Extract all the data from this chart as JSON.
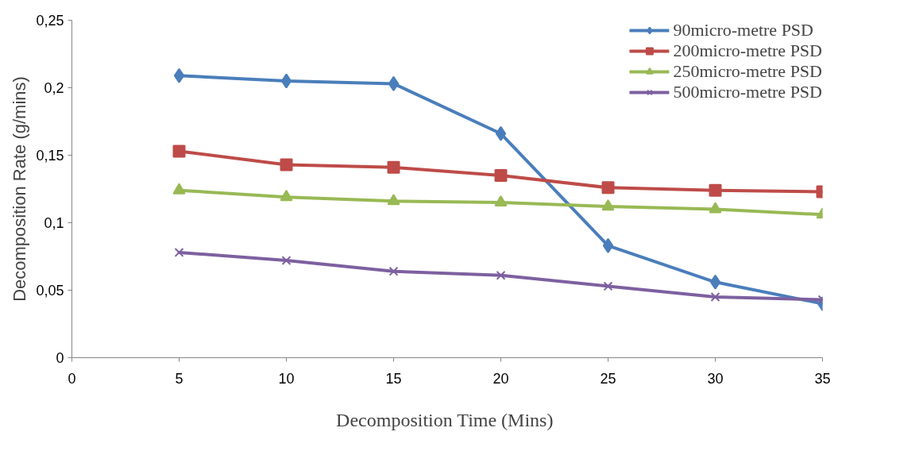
{
  "chart_data": {
    "type": "line",
    "xlabel": "Decomposition Time  (Mins)",
    "ylabel": "Decomposition Rate (g/mins)",
    "x": [
      5,
      10,
      15,
      20,
      25,
      30,
      35
    ],
    "series": [
      {
        "name": "90micro-metre PSD",
        "color": "#4a7ebb",
        "marker": "diamond",
        "values": [
          0.209,
          0.205,
          0.203,
          0.166,
          0.083,
          0.056,
          0.04
        ]
      },
      {
        "name": "200micro-metre PSD",
        "color": "#be4b48",
        "marker": "square",
        "values": [
          0.153,
          0.143,
          0.141,
          0.135,
          0.126,
          0.124,
          0.123
        ]
      },
      {
        "name": "250micro-metre PSD",
        "color": "#98b954",
        "marker": "triangle",
        "values": [
          0.124,
          0.119,
          0.116,
          0.115,
          0.112,
          0.11,
          0.106
        ]
      },
      {
        "name": "500micro-metre PSD",
        "color": "#7d60a0",
        "marker": "cross",
        "values": [
          0.078,
          0.072,
          0.064,
          0.061,
          0.053,
          0.045,
          0.043
        ]
      }
    ],
    "xlim": [
      0,
      35
    ],
    "xticks": [
      0,
      5,
      10,
      15,
      20,
      25,
      30,
      35
    ],
    "ylim": [
      0,
      0.25
    ],
    "yticks": [
      0,
      {
        "value": 0.05,
        "label": "0,05"
      },
      {
        "value": 0.1,
        "label": "0,1"
      },
      {
        "value": 0.15,
        "label": "0,15"
      },
      {
        "value": 0.2,
        "label": "0,2"
      },
      {
        "value": 0.25,
        "label": "0,25"
      }
    ],
    "grid": false,
    "legend": "top right",
    "line_style": "solid"
  }
}
